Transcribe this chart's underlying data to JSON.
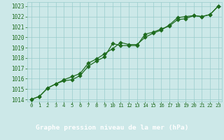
{
  "title": "Graphe pression niveau de la mer (hPa)",
  "hours": [
    0,
    1,
    2,
    3,
    4,
    5,
    6,
    7,
    8,
    9,
    10,
    11,
    12,
    13,
    14,
    15,
    16,
    17,
    18,
    19,
    20,
    21,
    22,
    23
  ],
  "series1": [
    1014.0,
    1014.3,
    1015.1,
    1015.5,
    1015.8,
    1015.9,
    1016.3,
    1017.2,
    1017.7,
    1018.1,
    1019.4,
    1019.2,
    1019.2,
    1019.2,
    1020.3,
    1020.5,
    1020.8,
    1021.1,
    1021.7,
    1021.8,
    1022.1,
    1022.0,
    1022.2,
    1023.0
  ],
  "series2": [
    1014.0,
    1014.3,
    1015.1,
    1015.5,
    1015.9,
    1016.2,
    1016.5,
    1017.5,
    1017.9,
    1018.4,
    1018.9,
    1019.5,
    1019.3,
    1019.3,
    1020.0,
    1020.4,
    1020.7,
    1021.2,
    1021.9,
    1022.0,
    1022.1,
    1022.0,
    1022.2,
    1023.0
  ],
  "ylim": [
    1013.8,
    1023.4
  ],
  "yticks": [
    1014,
    1015,
    1016,
    1017,
    1018,
    1019,
    1020,
    1021,
    1022,
    1023
  ],
  "xlim": [
    -0.5,
    23.5
  ],
  "line_color": "#1e6b1e",
  "bg_color": "#cce8e8",
  "grid_color": "#99cccc",
  "title_bg": "#2d7a2d",
  "title_fg": "#ffffff",
  "tick_color": "#1e6b1e",
  "tick_fontsize": 5.5,
  "xtick_fontsize": 5.2,
  "title_fontsize": 6.8,
  "linewidth": 0.9,
  "markersize": 2.8
}
